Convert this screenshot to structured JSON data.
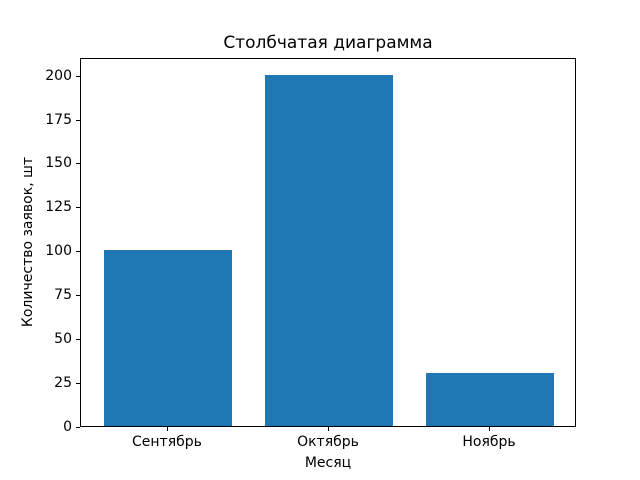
{
  "chart_data": {
    "type": "bar",
    "title": "Столбчатая диаграмма",
    "xlabel": "Месяц",
    "ylabel": "Количество заявок, шт",
    "categories": [
      "Сентябрь",
      "Октябрь",
      "Ноябрь"
    ],
    "values": [
      100,
      200,
      30
    ],
    "yticks": [
      0,
      25,
      50,
      75,
      100,
      125,
      150,
      175,
      200
    ],
    "ylim": [
      0,
      210
    ],
    "xlim": [
      -0.54,
      2.54
    ],
    "bar_width": 0.8,
    "bar_color": "#1f77b4",
    "axis_color": "#000000",
    "grid": false,
    "legend": "none"
  }
}
